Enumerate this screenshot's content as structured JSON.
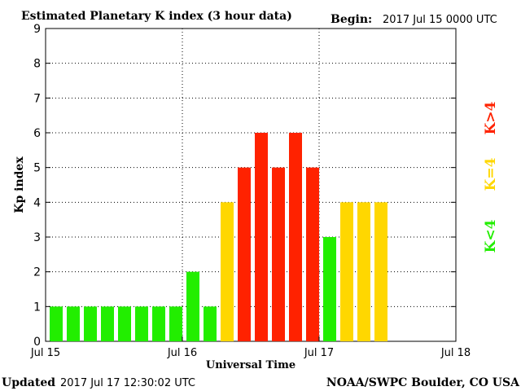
{
  "chart_data": {
    "type": "bar",
    "title": "Estimated Planetary K index (3 hour data)",
    "begin_label": "Begin:",
    "begin_value": "2017 Jul 15 0000 UTC",
    "xlabel": "Universal Time",
    "ylabel": "Kp index",
    "ylim": [
      0,
      9
    ],
    "yticks": [
      "0",
      "1",
      "2",
      "3",
      "4",
      "5",
      "6",
      "7",
      "8",
      "9"
    ],
    "xticks": [
      "Jul 15",
      "Jul 16",
      "Jul 17",
      "Jul 18"
    ],
    "bins_per_day": 8,
    "total_bins": 24,
    "values": [
      1,
      1,
      1,
      1,
      1,
      1,
      1,
      1,
      2,
      1,
      4,
      5,
      6,
      5,
      6,
      5,
      3,
      4,
      4,
      4
    ],
    "grid": true,
    "colors": {
      "low": "#22ee00",
      "mid": "#ffd700",
      "high": "#ff2200"
    },
    "legend": [
      {
        "label": "K<4",
        "color": "#22ee00"
      },
      {
        "label": "K=4",
        "color": "#ffd700"
      },
      {
        "label": "K>4",
        "color": "#ff2200"
      }
    ]
  },
  "footer": {
    "updated_label": "Updated",
    "updated_value": "2017 Jul 17 12:30:02 UTC",
    "source": "NOAA/SWPC Boulder, CO USA"
  }
}
